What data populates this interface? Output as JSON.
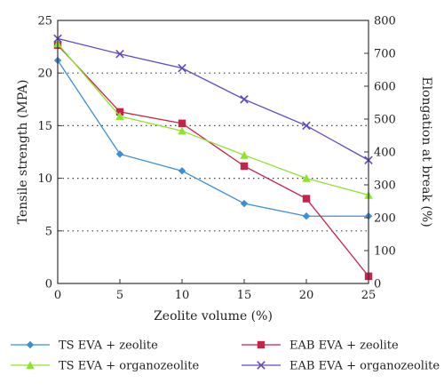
{
  "chart_data": {
    "type": "line",
    "xlabel": "Zeolite volume (%)",
    "ylabel": "Tensile strength (MPA)",
    "y2label": "Elongation at break (%)",
    "xlim": [
      0,
      25
    ],
    "ylim": [
      0,
      25
    ],
    "y2lim": [
      0,
      800
    ],
    "xticks": [
      0,
      5,
      10,
      15,
      20,
      25
    ],
    "yticks": [
      0,
      5,
      10,
      15,
      20,
      25
    ],
    "y2ticks": [
      0,
      100,
      200,
      300,
      400,
      500,
      600,
      700,
      800
    ],
    "grid": "horizontal dotted",
    "legend_position": "bottom",
    "x": [
      0,
      5,
      10,
      15,
      20,
      25
    ],
    "series": [
      {
        "name": "TS EVA + zeolite",
        "axis": "left",
        "color": "#3b8fd6",
        "marker": "diamond",
        "values": [
          21.2,
          12.3,
          10.7,
          7.6,
          6.4,
          6.4
        ]
      },
      {
        "name": "EAB EVA + zeolite",
        "axis": "right",
        "color": "#c8224a",
        "marker": "square",
        "values": [
          725,
          522,
          487,
          357,
          258,
          22
        ]
      },
      {
        "name": "TS EVA + organozeolite",
        "axis": "left",
        "color": "#8ee32c",
        "marker": "triangle",
        "values": [
          22.8,
          15.9,
          14.5,
          12.2,
          10.0,
          8.4
        ]
      },
      {
        "name": "EAB EVA + organozeolite",
        "axis": "right",
        "color": "#5c4ac8",
        "marker": "x",
        "values": [
          745,
          698,
          655,
          560,
          480,
          375
        ]
      }
    ]
  }
}
